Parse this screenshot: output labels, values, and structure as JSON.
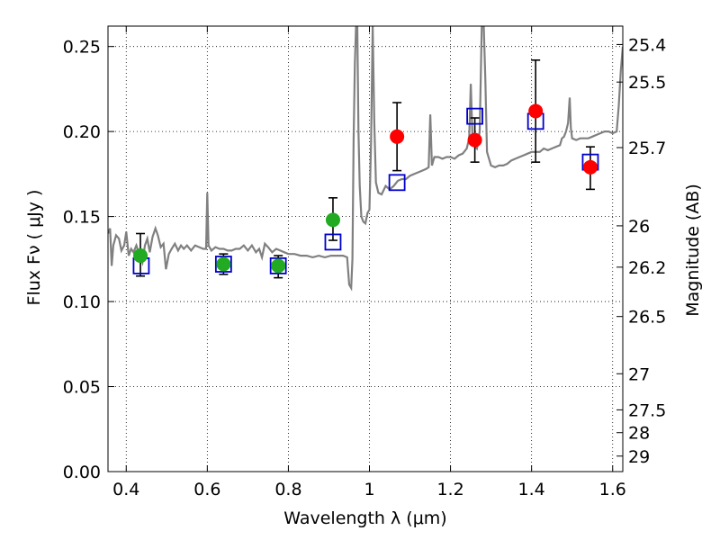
{
  "chart_data": {
    "type": "scatter",
    "xlabel": "Wavelength  λ (μm)",
    "ylabel": "Flux  Fν  ( μJy )",
    "ylabel_right": "Magnitude (AB)",
    "xlim": [
      0.355,
      1.625
    ],
    "ylim": [
      0.0,
      0.262
    ],
    "grid": true,
    "x_ticks": [
      {
        "value": 0.4,
        "label": "0.4"
      },
      {
        "value": 0.6,
        "label": "0.6"
      },
      {
        "value": 0.8,
        "label": "0.8"
      },
      {
        "value": 1.0,
        "label": "1"
      },
      {
        "value": 1.2,
        "label": "1.2"
      },
      {
        "value": 1.4,
        "label": "1.4"
      },
      {
        "value": 1.6,
        "label": "1.6"
      }
    ],
    "y_ticks": [
      {
        "value": 0.0,
        "label": "0.00"
      },
      {
        "value": 0.05,
        "label": "0.05"
      },
      {
        "value": 0.1,
        "label": "0.10"
      },
      {
        "value": 0.15,
        "label": "0.15"
      },
      {
        "value": 0.2,
        "label": "0.20"
      },
      {
        "value": 0.25,
        "label": "0.25"
      }
    ],
    "right_ticks": [
      {
        "mag": 25.4,
        "label": "25.4"
      },
      {
        "mag": 25.5,
        "label": "25.5"
      },
      {
        "mag": 25.7,
        "label": "25.7"
      },
      {
        "mag": 26.0,
        "label": "26"
      },
      {
        "mag": 26.2,
        "label": "26.2"
      },
      {
        "mag": 26.5,
        "label": "26.5"
      },
      {
        "mag": 27.0,
        "label": "27"
      },
      {
        "mag": 27.5,
        "label": "27.5"
      },
      {
        "mag": 28.0,
        "label": "28"
      },
      {
        "mag": 29.0,
        "label": "29"
      }
    ],
    "model_color": "#808080",
    "model_points": [
      [
        0.355,
        0.14
      ],
      [
        0.36,
        0.143
      ],
      [
        0.364,
        0.121
      ],
      [
        0.368,
        0.133
      ],
      [
        0.375,
        0.139
      ],
      [
        0.382,
        0.137
      ],
      [
        0.388,
        0.13
      ],
      [
        0.395,
        0.133
      ],
      [
        0.4,
        0.141
      ],
      [
        0.406,
        0.127
      ],
      [
        0.412,
        0.131
      ],
      [
        0.418,
        0.129
      ],
      [
        0.425,
        0.133
      ],
      [
        0.432,
        0.128
      ],
      [
        0.44,
        0.123
      ],
      [
        0.446,
        0.133
      ],
      [
        0.452,
        0.137
      ],
      [
        0.458,
        0.129
      ],
      [
        0.465,
        0.138
      ],
      [
        0.472,
        0.143
      ],
      [
        0.478,
        0.139
      ],
      [
        0.485,
        0.132
      ],
      [
        0.492,
        0.134
      ],
      [
        0.498,
        0.119
      ],
      [
        0.505,
        0.128
      ],
      [
        0.512,
        0.131
      ],
      [
        0.52,
        0.134
      ],
      [
        0.528,
        0.13
      ],
      [
        0.535,
        0.133
      ],
      [
        0.542,
        0.131
      ],
      [
        0.55,
        0.133
      ],
      [
        0.56,
        0.13
      ],
      [
        0.57,
        0.133
      ],
      [
        0.58,
        0.132
      ],
      [
        0.59,
        0.131
      ],
      [
        0.597,
        0.131
      ],
      [
        0.6,
        0.164
      ],
      [
        0.603,
        0.133
      ],
      [
        0.61,
        0.13
      ],
      [
        0.62,
        0.132
      ],
      [
        0.63,
        0.131
      ],
      [
        0.64,
        0.131
      ],
      [
        0.65,
        0.13
      ],
      [
        0.66,
        0.13
      ],
      [
        0.67,
        0.131
      ],
      [
        0.68,
        0.131
      ],
      [
        0.69,
        0.133
      ],
      [
        0.7,
        0.13
      ],
      [
        0.71,
        0.133
      ],
      [
        0.72,
        0.129
      ],
      [
        0.728,
        0.131
      ],
      [
        0.735,
        0.126
      ],
      [
        0.742,
        0.134
      ],
      [
        0.75,
        0.132
      ],
      [
        0.76,
        0.129
      ],
      [
        0.77,
        0.131
      ],
      [
        0.78,
        0.13
      ],
      [
        0.79,
        0.129
      ],
      [
        0.8,
        0.128
      ],
      [
        0.815,
        0.128
      ],
      [
        0.83,
        0.127
      ],
      [
        0.845,
        0.127
      ],
      [
        0.86,
        0.126
      ],
      [
        0.875,
        0.127
      ],
      [
        0.89,
        0.126
      ],
      [
        0.905,
        0.127
      ],
      [
        0.92,
        0.127
      ],
      [
        0.935,
        0.127
      ],
      [
        0.945,
        0.126
      ],
      [
        0.95,
        0.11
      ],
      [
        0.955,
        0.108
      ],
      [
        0.958,
        0.125
      ],
      [
        0.961,
        0.195
      ],
      [
        0.964,
        0.24
      ],
      [
        0.967,
        0.262
      ],
      [
        0.97,
        0.262
      ],
      [
        0.973,
        0.2
      ],
      [
        0.976,
        0.168
      ],
      [
        0.98,
        0.15
      ],
      [
        0.985,
        0.147
      ],
      [
        0.99,
        0.146
      ],
      [
        0.995,
        0.152
      ],
      [
        1.0,
        0.154
      ],
      [
        1.004,
        0.194
      ],
      [
        1.008,
        0.262
      ],
      [
        1.012,
        0.205
      ],
      [
        1.016,
        0.17
      ],
      [
        1.022,
        0.164
      ],
      [
        1.03,
        0.163
      ],
      [
        1.04,
        0.168
      ],
      [
        1.05,
        0.166
      ],
      [
        1.06,
        0.168
      ],
      [
        1.07,
        0.171
      ],
      [
        1.08,
        0.172
      ],
      [
        1.09,
        0.172
      ],
      [
        1.1,
        0.174
      ],
      [
        1.11,
        0.175
      ],
      [
        1.12,
        0.176
      ],
      [
        1.13,
        0.177
      ],
      [
        1.14,
        0.178
      ],
      [
        1.146,
        0.179
      ],
      [
        1.15,
        0.21
      ],
      [
        1.154,
        0.18
      ],
      [
        1.16,
        0.185
      ],
      [
        1.17,
        0.185
      ],
      [
        1.18,
        0.184
      ],
      [
        1.19,
        0.185
      ],
      [
        1.2,
        0.185
      ],
      [
        1.21,
        0.184
      ],
      [
        1.22,
        0.186
      ],
      [
        1.23,
        0.187
      ],
      [
        1.24,
        0.19
      ],
      [
        1.246,
        0.196
      ],
      [
        1.25,
        0.228
      ],
      [
        1.254,
        0.198
      ],
      [
        1.258,
        0.192
      ],
      [
        1.265,
        0.19
      ],
      [
        1.272,
        0.2
      ],
      [
        1.277,
        0.262
      ],
      [
        1.282,
        0.262
      ],
      [
        1.286,
        0.23
      ],
      [
        1.29,
        0.188
      ],
      [
        1.3,
        0.18
      ],
      [
        1.31,
        0.179
      ],
      [
        1.32,
        0.18
      ],
      [
        1.33,
        0.18
      ],
      [
        1.34,
        0.181
      ],
      [
        1.35,
        0.183
      ],
      [
        1.36,
        0.184
      ],
      [
        1.37,
        0.185
      ],
      [
        1.38,
        0.186
      ],
      [
        1.39,
        0.187
      ],
      [
        1.4,
        0.188
      ],
      [
        1.41,
        0.188
      ],
      [
        1.42,
        0.188
      ],
      [
        1.43,
        0.19
      ],
      [
        1.44,
        0.189
      ],
      [
        1.45,
        0.19
      ],
      [
        1.46,
        0.191
      ],
      [
        1.47,
        0.192
      ],
      [
        1.475,
        0.196
      ],
      [
        1.48,
        0.197
      ],
      [
        1.485,
        0.2
      ],
      [
        1.49,
        0.205
      ],
      [
        1.494,
        0.22
      ],
      [
        1.497,
        0.202
      ],
      [
        1.5,
        0.196
      ],
      [
        1.51,
        0.195
      ],
      [
        1.52,
        0.196
      ],
      [
        1.53,
        0.196
      ],
      [
        1.54,
        0.196
      ],
      [
        1.55,
        0.197
      ],
      [
        1.56,
        0.198
      ],
      [
        1.57,
        0.199
      ],
      [
        1.58,
        0.2
      ],
      [
        1.59,
        0.2
      ],
      [
        1.6,
        0.199
      ],
      [
        1.61,
        0.2
      ],
      [
        1.615,
        0.215
      ],
      [
        1.62,
        0.235
      ],
      [
        1.625,
        0.25
      ]
    ],
    "observed": [
      {
        "x": 0.435,
        "y": 0.127,
        "yerr_low": 0.012,
        "yerr_high": 0.013,
        "color": "#22aa22"
      },
      {
        "x": 0.64,
        "y": 0.122,
        "yerr_low": 0.006,
        "yerr_high": 0.006,
        "color": "#22aa22"
      },
      {
        "x": 0.775,
        "y": 0.121,
        "yerr_low": 0.007,
        "yerr_high": 0.006,
        "color": "#22aa22"
      },
      {
        "x": 0.91,
        "y": 0.148,
        "yerr_low": 0.012,
        "yerr_high": 0.013,
        "color": "#22aa22"
      },
      {
        "x": 1.068,
        "y": 0.197,
        "yerr_low": 0.02,
        "yerr_high": 0.02,
        "color": "#ff0000"
      },
      {
        "x": 1.26,
        "y": 0.195,
        "yerr_low": 0.013,
        "yerr_high": 0.013,
        "color": "#ff0000"
      },
      {
        "x": 1.41,
        "y": 0.212,
        "yerr_low": 0.03,
        "yerr_high": 0.03,
        "color": "#ff0000"
      },
      {
        "x": 1.545,
        "y": 0.179,
        "yerr_low": 0.013,
        "yerr_high": 0.012,
        "color": "#ff0000"
      }
    ],
    "model_photometry": [
      {
        "x": 0.437,
        "y": 0.121
      },
      {
        "x": 0.64,
        "y": 0.122
      },
      {
        "x": 0.775,
        "y": 0.121
      },
      {
        "x": 0.91,
        "y": 0.135
      },
      {
        "x": 1.068,
        "y": 0.17
      },
      {
        "x": 1.26,
        "y": 0.209
      },
      {
        "x": 1.41,
        "y": 0.206
      },
      {
        "x": 1.545,
        "y": 0.182
      }
    ],
    "model_photometry_color": "#0000cc"
  }
}
